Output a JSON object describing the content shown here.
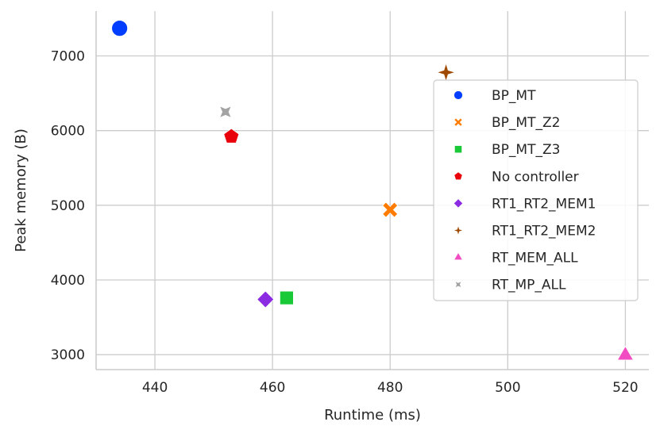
{
  "chart_data": {
    "type": "scatter",
    "title": "",
    "xlabel": "Runtime (ms)",
    "ylabel": "Peak memory (B)",
    "xlim": [
      430,
      524
    ],
    "ylim": [
      2800,
      7600
    ],
    "xticks": [
      440,
      460,
      480,
      500,
      520
    ],
    "yticks": [
      3000,
      4000,
      5000,
      6000,
      7000
    ],
    "grid": true,
    "legend_position": "right",
    "series": [
      {
        "name": "BP_MT",
        "marker": "circle",
        "color": "#023eff",
        "x": 434.0,
        "y": 7370
      },
      {
        "name": "BP_MT_Z2",
        "marker": "x",
        "color": "#ff7c00",
        "x": 480.0,
        "y": 4940
      },
      {
        "name": "BP_MT_Z3",
        "marker": "square",
        "color": "#1ac938",
        "x": 462.4,
        "y": 3760
      },
      {
        "name": "No controller",
        "marker": "pentagon",
        "color": "#e8000b",
        "x": 453.0,
        "y": 5920
      },
      {
        "name": "RT1_RT2_MEM1",
        "marker": "diamond",
        "color": "#8b2be2",
        "x": 458.8,
        "y": 3740
      },
      {
        "name": "RT1_RT2_MEM2",
        "marker": "star4",
        "color": "#9f4800",
        "x": 489.5,
        "y": 6780
      },
      {
        "name": "RT_MEM_ALL",
        "marker": "triangle",
        "color": "#f14cc1",
        "x": 520.0,
        "y": 2990
      },
      {
        "name": "RT_MP_ALL",
        "marker": "star4-thin",
        "color": "#a3a3a3",
        "x": 452.0,
        "y": 6250
      }
    ]
  }
}
